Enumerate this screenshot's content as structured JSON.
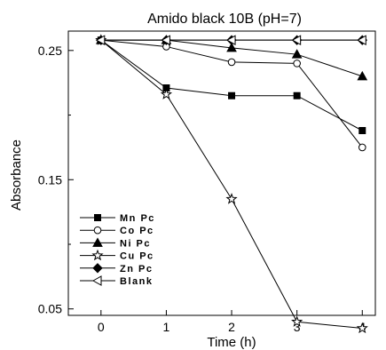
{
  "chart_data": {
    "type": "line",
    "title": "Amido black 10B (pH=7)",
    "xlabel": "Time (h)",
    "ylabel": "Absorbance",
    "x": [
      0,
      1,
      2,
      3,
      4
    ],
    "xticks": [
      "0",
      "1",
      "2",
      "3",
      "4"
    ],
    "yticks": [
      "0.05",
      "0.15",
      "0.25"
    ],
    "xlim": [
      -0.5,
      4.2
    ],
    "ylim": [
      0.045,
      0.265
    ],
    "grid": false,
    "legend_position": "bottom-left",
    "series": [
      {
        "name": "Mn Pc",
        "marker": "filled-square",
        "values": [
          0.258,
          0.221,
          0.215,
          0.215,
          0.188
        ]
      },
      {
        "name": "Co Pc",
        "marker": "open-circle",
        "values": [
          0.258,
          0.253,
          0.241,
          0.24,
          0.175
        ]
      },
      {
        "name": "Ni Pc",
        "marker": "filled-triangle",
        "values": [
          0.258,
          0.258,
          0.252,
          0.247,
          0.23
        ]
      },
      {
        "name": "Cu Pc",
        "marker": "open-star",
        "values": [
          0.258,
          0.216,
          0.135,
          0.04,
          0.035
        ]
      },
      {
        "name": "Zn Pc",
        "marker": "filled-diamond",
        "values": [
          0.258,
          0.258,
          0.258,
          0.258,
          0.258
        ]
      },
      {
        "name": "Blank",
        "marker": "open-left-triangle",
        "values": [
          0.258,
          0.258,
          0.258,
          0.258,
          0.258
        ]
      }
    ]
  }
}
